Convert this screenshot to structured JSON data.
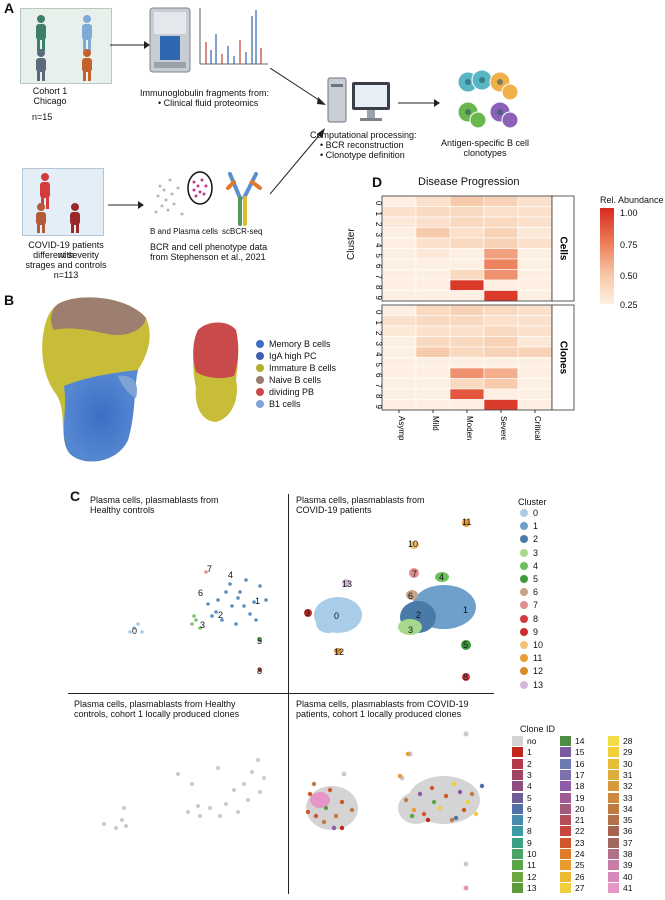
{
  "panels": {
    "A": "A",
    "B": "B",
    "C": "C",
    "D": "D"
  },
  "panelA": {
    "cohort1": "Cohort 1",
    "chicago": "Chicago",
    "n1": "n=15",
    "ig_title": "Immunoglobulin fragments from:",
    "ig_bullet": "Clinical fluid proteomics",
    "covid_text1": "COVID-19 patients with",
    "covid_text2": "different severity",
    "covid_text3": "strages and controls",
    "n2": "n=113",
    "bplasma": "B and Plasma cells",
    "scbcr": "scBCR-seq",
    "bcr_pheno1": "BCR and cell phenotype data",
    "bcr_pheno2": "from Stephenson et al., 2021",
    "comp_title": "Computational processing:",
    "comp_b1": "BCR reconstruction",
    "comp_b2": "Clonotype definition",
    "antigen1": "Antigen-specific B cell",
    "antigen2": "clonotypes"
  },
  "panelB": {
    "legend": [
      {
        "label": "Memory B cells",
        "color": "#3b6fc4"
      },
      {
        "label": "IgA high PC",
        "color": "#c7bd3a"
      },
      {
        "label": "Immature B cells",
        "color": "#b7ad2c"
      },
      {
        "label": "Naive B cells",
        "color": "#9b7d6e"
      },
      {
        "label": "dividing PB",
        "color": "#c84a4a"
      },
      {
        "label": "B1 cells",
        "color": "#7ea4d6"
      }
    ]
  },
  "panelC": {
    "q1_title1": "Plasma cells, plasmablasts from",
    "q1_title2": "Healthy controls",
    "q2_title1": "Plasma cells, plasmablasts from",
    "q2_title2": "COVID-19 patients",
    "q3_title1": "Plasma cells, plasmablasts from Healthy",
    "q3_title2": "controls, cohort 1 locally produced clones",
    "q4_title1": "Plasma cells, plasmablasts from COVID-19",
    "q4_title2": "patients, cohort 1 locally produced clones",
    "cluster_title": "Cluster",
    "clusters": [
      {
        "label": "0",
        "color": "#a9cde8"
      },
      {
        "label": "1",
        "color": "#6f9fcb"
      },
      {
        "label": "2",
        "color": "#4a7aa8"
      },
      {
        "label": "3",
        "color": "#a7d98d"
      },
      {
        "label": "4",
        "color": "#6cbf5b"
      },
      {
        "label": "5",
        "color": "#3e9a3a"
      },
      {
        "label": "6",
        "color": "#c6a48a"
      },
      {
        "label": "7",
        "color": "#e08f8f"
      },
      {
        "label": "8",
        "color": "#d23b3b"
      },
      {
        "label": "9",
        "color": "#c8302c"
      },
      {
        "label": "10",
        "color": "#f2c27a"
      },
      {
        "label": "11",
        "color": "#eb9b33"
      },
      {
        "label": "12",
        "color": "#d98a2b"
      },
      {
        "label": "13",
        "color": "#d5b7dc"
      }
    ],
    "clone_title": "Clone ID",
    "clone_col1": [
      {
        "label": "no",
        "color": "#d3d3d3"
      },
      {
        "label": "1",
        "color": "#c0281f"
      },
      {
        "label": "2",
        "color": "#b23a4a"
      },
      {
        "label": "3",
        "color": "#a24565"
      },
      {
        "label": "4",
        "color": "#8e4f7e"
      },
      {
        "label": "5",
        "color": "#6f5d96"
      },
      {
        "label": "6",
        "color": "#536fa8"
      },
      {
        "label": "7",
        "color": "#4a8bb0"
      },
      {
        "label": "8",
        "color": "#3c9aa2"
      },
      {
        "label": "9",
        "color": "#3d9f85"
      },
      {
        "label": "10",
        "color": "#4aa466"
      },
      {
        "label": "11",
        "color": "#5aa54a"
      },
      {
        "label": "12",
        "color": "#6da53e"
      },
      {
        "label": "13",
        "color": "#5c9b3b"
      }
    ],
    "clone_col2": [
      {
        "label": "14",
        "color": "#4f8c44"
      },
      {
        "label": "15",
        "color": "#7a5a9c"
      },
      {
        "label": "16",
        "color": "#6c7bb4"
      },
      {
        "label": "17",
        "color": "#7b6fb0"
      },
      {
        "label": "18",
        "color": "#8f5aa6"
      },
      {
        "label": "19",
        "color": "#9f5a93"
      },
      {
        "label": "20",
        "color": "#a25a7a"
      },
      {
        "label": "21",
        "color": "#b44f5a"
      },
      {
        "label": "22",
        "color": "#c6473e"
      },
      {
        "label": "23",
        "color": "#d2562c"
      },
      {
        "label": "24",
        "color": "#df7a27"
      },
      {
        "label": "25",
        "color": "#e89a2a"
      },
      {
        "label": "26",
        "color": "#eeb832"
      },
      {
        "label": "27",
        "color": "#f1cf3c"
      }
    ],
    "clone_col3": [
      {
        "label": "28",
        "color": "#f3dc46"
      },
      {
        "label": "29",
        "color": "#f0cf3b"
      },
      {
        "label": "30",
        "color": "#e7bd38"
      },
      {
        "label": "31",
        "color": "#deac3a"
      },
      {
        "label": "32",
        "color": "#d69a3d"
      },
      {
        "label": "33",
        "color": "#cd8a3f"
      },
      {
        "label": "34",
        "color": "#c27a43"
      },
      {
        "label": "35",
        "color": "#b56f4a"
      },
      {
        "label": "36",
        "color": "#a86452"
      },
      {
        "label": "37",
        "color": "#a0685e"
      },
      {
        "label": "38",
        "color": "#b2728a"
      },
      {
        "label": "39",
        "color": "#c67ea6"
      },
      {
        "label": "40",
        "color": "#d78ab9"
      },
      {
        "label": "41",
        "color": "#e596c7"
      }
    ]
  },
  "chart_data": {
    "type": "heatmap",
    "title": "Disease Progression",
    "ylabel": "Cluster",
    "columns": [
      "Asymptomatic",
      "Mild",
      "Moderate",
      "Severe",
      "Critical"
    ],
    "rows": [
      "0",
      "1",
      "2",
      "3",
      "4",
      "5",
      "6",
      "7",
      "8",
      "9"
    ],
    "colorbar_title": "Rel. Abundance",
    "colorbar_ticks": [
      "1.00",
      "0.75",
      "0.50",
      "0.25"
    ],
    "colorbar_range": [
      0.2,
      1.0
    ],
    "facets": [
      {
        "name": "Cells",
        "values": [
          [
            0.2,
            0.3,
            0.45,
            0.4,
            0.3
          ],
          [
            0.3,
            0.35,
            0.35,
            0.3,
            0.3
          ],
          [
            0.25,
            0.3,
            0.35,
            0.35,
            0.3
          ],
          [
            0.2,
            0.45,
            0.3,
            0.4,
            0.25
          ],
          [
            0.2,
            0.3,
            0.35,
            0.4,
            0.3
          ],
          [
            0.2,
            0.25,
            0.2,
            0.6,
            0.2
          ],
          [
            0.2,
            0.2,
            0.2,
            0.7,
            0.2
          ],
          [
            0.2,
            0.2,
            0.35,
            0.65,
            0.2
          ],
          [
            0.2,
            0.2,
            0.95,
            0.2,
            0.2
          ],
          [
            0.2,
            0.2,
            0.2,
            0.95,
            0.2
          ]
        ]
      },
      {
        "name": "Clones",
        "values": [
          [
            0.2,
            0.35,
            0.4,
            0.35,
            0.3
          ],
          [
            0.3,
            0.35,
            0.35,
            0.3,
            0.3
          ],
          [
            0.25,
            0.3,
            0.3,
            0.35,
            0.3
          ],
          [
            0.2,
            0.35,
            0.35,
            0.4,
            0.25
          ],
          [
            0.2,
            0.45,
            0.35,
            0.4,
            0.4
          ],
          [
            0.2,
            0.2,
            0.2,
            0.2,
            0.2
          ],
          [
            0.2,
            0.2,
            0.65,
            0.55,
            0.2
          ],
          [
            0.2,
            0.2,
            0.35,
            0.45,
            0.2
          ],
          [
            0.2,
            0.2,
            0.85,
            0.2,
            0.2
          ],
          [
            0.2,
            0.2,
            0.2,
            0.95,
            0.2
          ]
        ]
      }
    ]
  }
}
